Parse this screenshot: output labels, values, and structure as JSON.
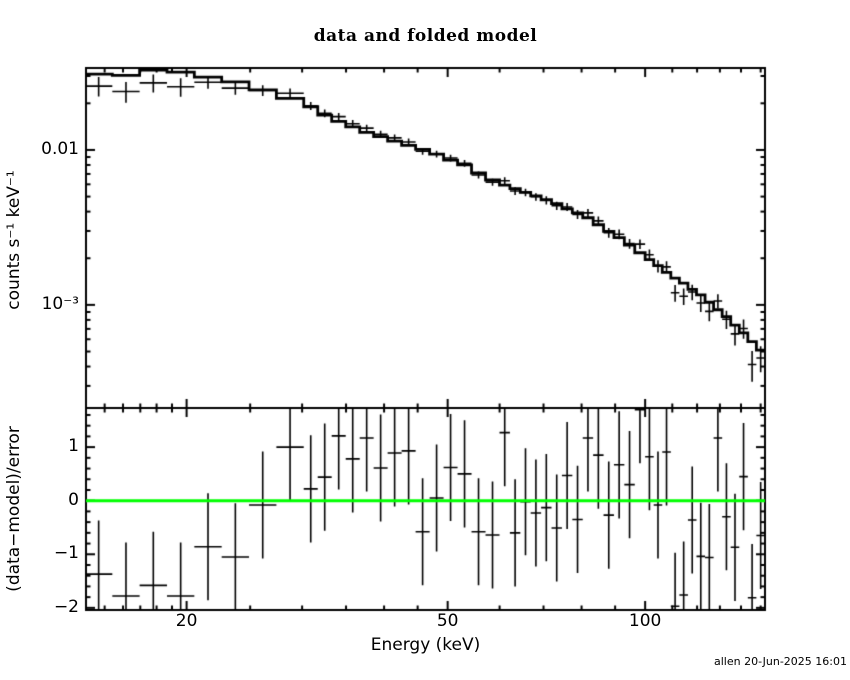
{
  "title": "data and folded model",
  "footer": "allen 20-Jun-2025 16:01",
  "colors": {
    "foreground": "#000000",
    "background": "#ffffff",
    "zero_line_green": "#00ff00"
  },
  "chart_data": {
    "type": "line",
    "variant": "counts-spectrum-histogram-with-residual-errorbars",
    "title": "data and folded model",
    "xlabel": "Energy (keV)",
    "xscale": "log",
    "xlim": [
      14.05,
      152.3
    ],
    "xticks_major": [
      {
        "v": 20,
        "label": "20"
      },
      {
        "v": 50,
        "label": "50"
      },
      {
        "v": 100,
        "label": "100"
      }
    ],
    "xticks_minor": [
      15,
      16,
      17,
      18,
      19,
      25,
      30,
      35,
      40,
      45,
      60,
      70,
      80,
      90,
      110,
      120,
      130,
      140,
      150
    ],
    "top_panel": {
      "ylabel": "counts s⁻¹ keV⁻¹",
      "yscale": "log",
      "ylim": [
        0.000216,
        0.0338
      ],
      "yticks_labeled": [
        {
          "v": 0.01,
          "label": "0.01"
        },
        {
          "v": 0.001,
          "label": "10⁻³"
        }
      ],
      "bins_format": [
        "E_lo_keV",
        "E_hi_keV",
        "model_counts",
        "residual_sigma",
        "relative_error"
      ],
      "bins_note": "data = model*(1+residual_sigma*relative_error); error bar = model*relative_error",
      "bins": [
        [
          14.0,
          15.41,
          0.0309,
          -1.37,
          0.12
        ],
        [
          15.41,
          16.96,
          0.0303,
          -1.78,
          0.12
        ],
        [
          16.96,
          18.67,
          0.0328,
          -1.58,
          0.11
        ],
        [
          18.67,
          20.55,
          0.0318,
          -1.78,
          0.11
        ],
        [
          20.55,
          22.62,
          0.0295,
          -0.86,
          0.085
        ],
        [
          22.62,
          24.9,
          0.0275,
          -1.05,
          0.085
        ],
        [
          24.9,
          27.41,
          0.0244,
          -0.08,
          0.08
        ],
        [
          27.41,
          30.17,
          0.0215,
          1.0,
          0.08
        ],
        [
          30.17,
          31.69,
          0.019,
          0.22,
          0.06
        ],
        [
          31.69,
          33.28,
          0.0168,
          0.44,
          0.06
        ],
        [
          33.28,
          34.96,
          0.0153,
          1.21,
          0.06
        ],
        [
          34.96,
          36.72,
          0.0141,
          0.78,
          0.06
        ],
        [
          36.72,
          38.56,
          0.013,
          1.17,
          0.055
        ],
        [
          38.56,
          40.5,
          0.0122,
          0.61,
          0.055
        ],
        [
          40.5,
          42.54,
          0.0114,
          0.89,
          0.055
        ],
        [
          42.54,
          44.68,
          0.0107,
          0.93,
          0.055
        ],
        [
          44.68,
          46.93,
          0.0101,
          -0.58,
          0.05
        ],
        [
          46.93,
          49.29,
          0.0094,
          0.05,
          0.05
        ],
        [
          49.29,
          51.77,
          0.0086,
          0.62,
          0.05
        ],
        [
          51.77,
          54.37,
          0.008,
          0.5,
          0.05
        ],
        [
          54.37,
          57.11,
          0.0071,
          -0.58,
          0.05
        ],
        [
          57.11,
          59.98,
          0.0064,
          -0.64,
          0.05
        ],
        [
          59.98,
          62.21,
          0.00592,
          1.27,
          0.055
        ],
        [
          62.21,
          64.52,
          0.00562,
          -0.6,
          0.055
        ],
        [
          64.52,
          66.92,
          0.00533,
          -0.02,
          0.055
        ],
        [
          66.92,
          69.41,
          0.00505,
          -0.23,
          0.055
        ],
        [
          69.41,
          71.99,
          0.00477,
          -0.13,
          0.06
        ],
        [
          71.99,
          74.67,
          0.0045,
          -0.51,
          0.06
        ],
        [
          74.67,
          77.45,
          0.00417,
          0.47,
          0.06
        ],
        [
          77.45,
          80.33,
          0.00393,
          -0.35,
          0.065
        ],
        [
          80.33,
          83.32,
          0.00365,
          1.17,
          0.065
        ],
        [
          83.32,
          86.42,
          0.00329,
          0.85,
          0.07
        ],
        [
          86.42,
          89.63,
          0.00298,
          -0.27,
          0.07
        ],
        [
          89.63,
          92.96,
          0.00272,
          0.67,
          0.075
        ],
        [
          92.96,
          96.42,
          0.00243,
          0.3,
          0.075
        ],
        [
          96.42,
          100.0,
          0.00217,
          1.7,
          0.08
        ],
        [
          100.0,
          103.05,
          0.00196,
          0.82,
          0.09
        ],
        [
          103.05,
          106.19,
          0.00179,
          -0.08,
          0.09
        ],
        [
          106.19,
          109.43,
          0.00162,
          0.91,
          0.095
        ],
        [
          109.43,
          112.77,
          0.00149,
          -1.97,
          0.1
        ],
        [
          112.77,
          116.21,
          0.00138,
          -1.76,
          0.1
        ],
        [
          116.21,
          119.75,
          0.00126,
          -0.36,
          0.11
        ],
        [
          119.75,
          123.4,
          0.00116,
          -1.04,
          0.11
        ],
        [
          123.4,
          127.16,
          0.00104,
          -1.06,
          0.12
        ],
        [
          127.16,
          131.04,
          0.00093,
          1.17,
          0.12
        ],
        [
          131.04,
          135.03,
          0.00084,
          -0.3,
          0.13
        ],
        [
          135.03,
          139.15,
          0.00074,
          -0.87,
          0.14
        ],
        [
          139.15,
          143.39,
          0.00066,
          0.45,
          0.15
        ],
        [
          143.39,
          147.76,
          0.00058,
          -1.81,
          0.16
        ],
        [
          147.76,
          152.28,
          0.00051,
          -0.65,
          0.17
        ]
      ]
    },
    "bottom_panel": {
      "ylabel": "(data−model)/error",
      "yscale": "linear",
      "ylim": [
        -2.04,
        1.73
      ],
      "yticks_labeled": [
        {
          "v": 1,
          "label": "1"
        },
        {
          "v": 0,
          "label": "0"
        },
        {
          "v": -1,
          "label": "−1"
        },
        {
          "v": -2,
          "label": "−2"
        }
      ],
      "ytick_minor_step": 0.2,
      "resid_err": 1.0,
      "zero_line_color": "#00ff00"
    }
  }
}
